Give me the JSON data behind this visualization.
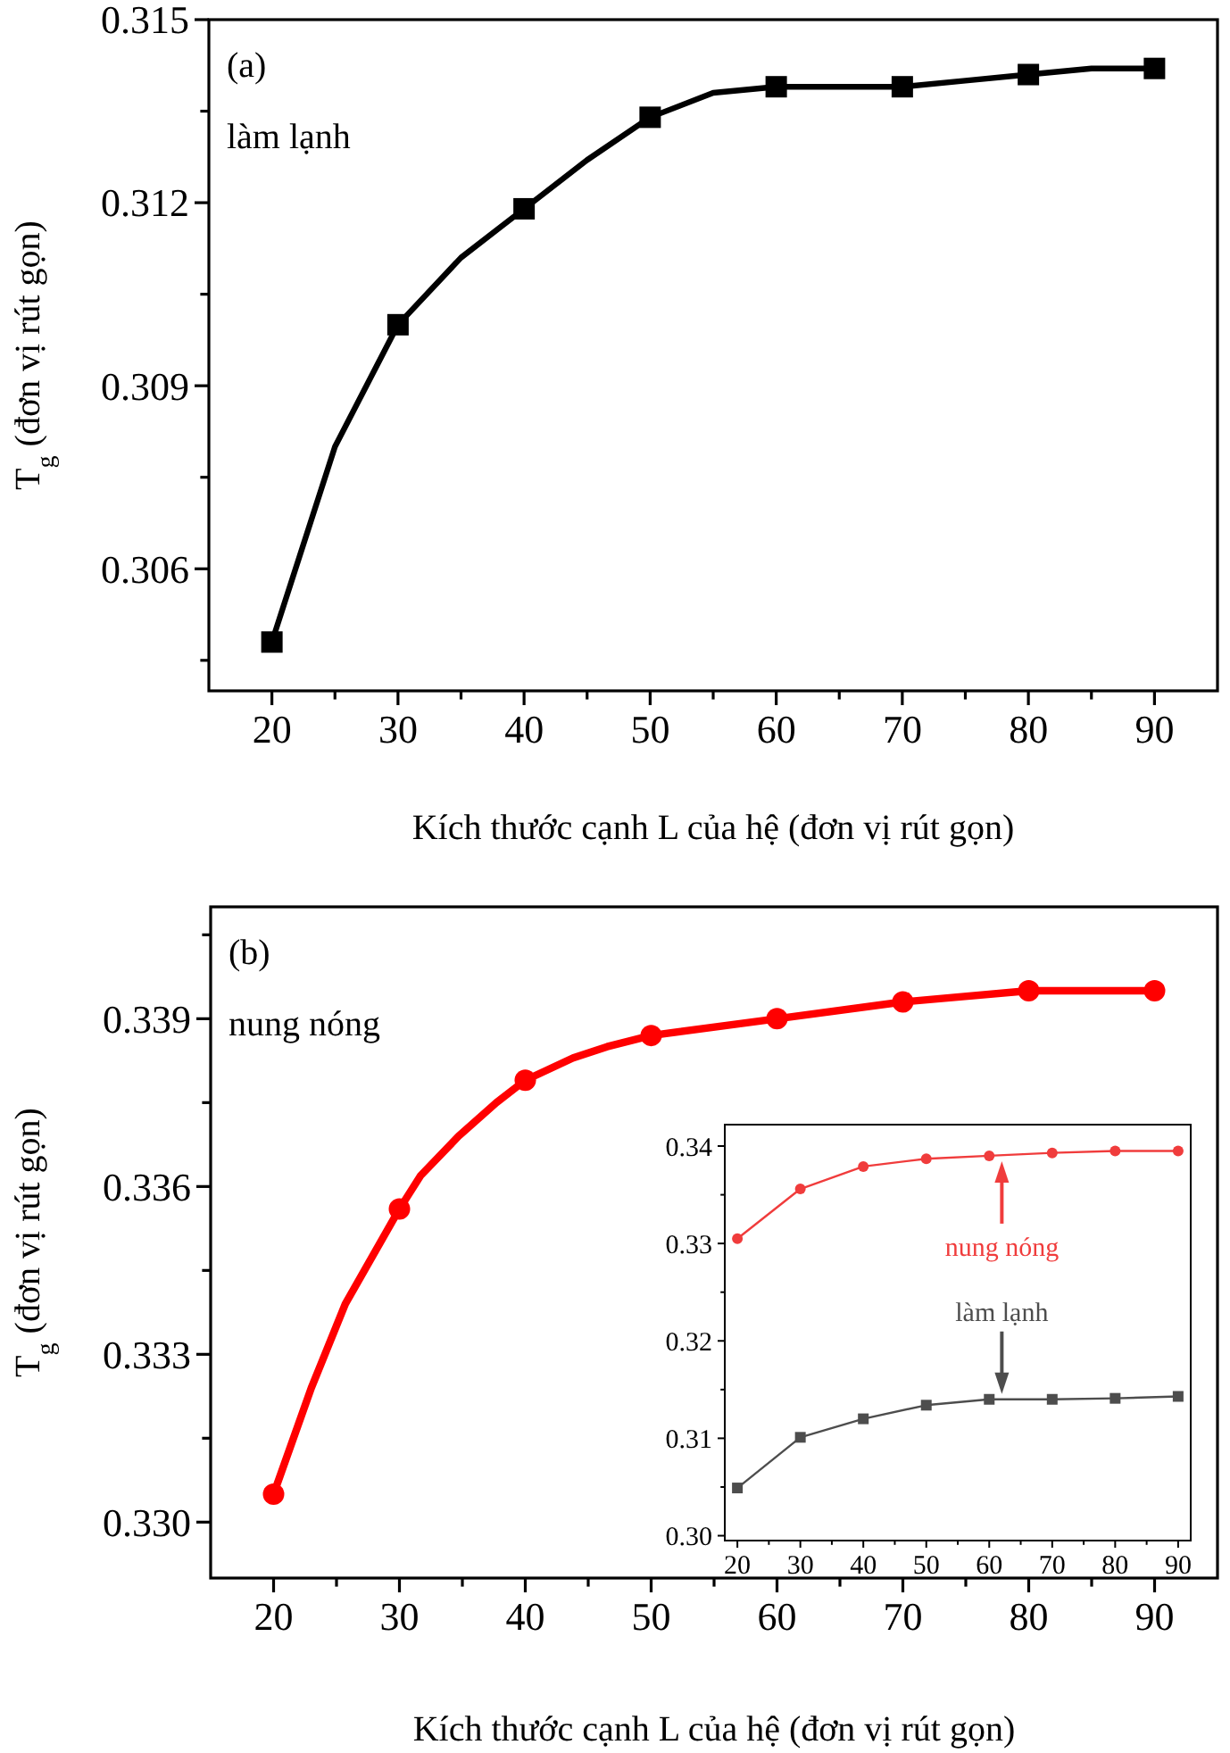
{
  "chart_data": [
    {
      "type": "line",
      "xlabel": "Kích thước cạnh L của hệ (đơn vị rút gọn)",
      "ylabel": "T$_{g}$ (đơn vị rút gọn)",
      "annotations": [
        "(a)",
        "làm lạnh"
      ],
      "xlim": [
        15,
        95
      ],
      "ylim": [
        0.304,
        0.315
      ],
      "xticks": [
        20,
        {
          "value": 25,
          "label": null
        },
        30,
        {
          "value": 35,
          "label": null
        },
        40,
        {
          "value": 45,
          "label": null
        },
        50,
        {
          "value": 55,
          "label": null
        },
        60,
        {
          "value": 65,
          "label": null
        },
        70,
        {
          "value": 75,
          "label": null
        },
        80,
        {
          "value": 85,
          "label": null
        },
        90
      ],
      "yticks": [
        {
          "value": 0.3045,
          "label": null
        },
        0.306,
        {
          "value": 0.3075,
          "label": null
        },
        0.309,
        {
          "value": 0.3105,
          "label": null
        },
        0.312,
        {
          "value": 0.3135,
          "label": null
        },
        0.315
      ],
      "grid": false,
      "line_style": "solid",
      "series": [
        {
          "color": "#000000",
          "marker": "none",
          "x": [
            20,
            25,
            30,
            35,
            40,
            45,
            50,
            55,
            60,
            70,
            75,
            80,
            85,
            90
          ],
          "values": [
            0.3048,
            0.308,
            0.31,
            0.3111,
            0.3119,
            0.3127,
            0.3134,
            0.3138,
            0.3139,
            0.3139,
            0.314,
            0.3141,
            0.3142,
            0.3142
          ]
        },
        {
          "type": "scatter",
          "color": "#000000",
          "marker": "square",
          "x": [
            20,
            30,
            40,
            50,
            60,
            70,
            80,
            90
          ],
          "values": [
            0.3048,
            0.31,
            0.3119,
            0.3134,
            0.3139,
            0.3139,
            0.3141,
            0.3142
          ]
        }
      ]
    },
    {
      "type": "line",
      "xlabel": "Kích thước cạnh L của hệ (đơn vị rút gọn)",
      "ylabel": "T$_{g}$ (đơn vị rút gọn)",
      "annotations": [
        "(b)",
        "nung nóng"
      ],
      "xlim": [
        15,
        95
      ],
      "ylim": [
        0.329,
        0.341
      ],
      "xticks": [
        20,
        {
          "value": 25,
          "label": null
        },
        30,
        {
          "value": 35,
          "label": null
        },
        40,
        {
          "value": 45,
          "label": null
        },
        50,
        {
          "value": 55,
          "label": null
        },
        60,
        {
          "value": 65,
          "label": null
        },
        70,
        {
          "value": 75,
          "label": null
        },
        80,
        {
          "value": 85,
          "label": null
        },
        90
      ],
      "yticks": [
        {
          "value": 0.33,
          "label": "0.330"
        },
        {
          "value": 0.3315,
          "label": null
        },
        0.333,
        {
          "value": 0.3345,
          "label": null
        },
        0.336,
        {
          "value": 0.3375,
          "label": null
        },
        0.339,
        {
          "value": 0.3405,
          "label": null
        }
      ],
      "grid": false,
      "line_style": "solid",
      "series": [
        {
          "color": "#ff0000",
          "marker": "none",
          "x": [
            20,
            23,
            25.7,
            30,
            31.7,
            34.7,
            37.7,
            40,
            43.8,
            46.5,
            50,
            60,
            70,
            80,
            90
          ],
          "values": [
            0.3305,
            0.3324,
            0.3339,
            0.3356,
            0.3362,
            0.3369,
            0.3375,
            0.3379,
            0.3383,
            0.3385,
            0.3387,
            0.339,
            0.3393,
            0.3395,
            0.3395
          ]
        },
        {
          "type": "scatter",
          "color": "#ff0000",
          "marker": "circle",
          "x": [
            20,
            30,
            40,
            50,
            60,
            70,
            80,
            90
          ],
          "values": [
            0.3305,
            0.3356,
            0.3379,
            0.3387,
            0.339,
            0.3393,
            0.3395,
            0.3395
          ]
        }
      ]
    },
    {
      "type": "line",
      "xlim": [
        18,
        92
      ],
      "ylim": [
        0.2995,
        0.3422
      ],
      "xticks": [
        20,
        {
          "value": 25,
          "label": null
        },
        30,
        {
          "value": 35,
          "label": null
        },
        40,
        {
          "value": 45,
          "label": null
        },
        50,
        {
          "value": 55,
          "label": null
        },
        60,
        {
          "value": 65,
          "label": null
        },
        70,
        {
          "value": 75,
          "label": null
        },
        80,
        {
          "value": 85,
          "label": null
        },
        90
      ],
      "yticks": [
        {
          "value": 0.3,
          "label": "0.30"
        },
        {
          "value": 0.305,
          "label": null
        },
        0.31,
        {
          "value": 0.315,
          "label": null
        },
        0.32,
        {
          "value": 0.325,
          "label": null
        },
        0.33,
        {
          "value": 0.335,
          "label": null
        },
        0.34
      ],
      "annotations": [
        {
          "text": "nung nóng",
          "x": 62,
          "y": 0.339
        },
        {
          "text": "làm lạnh",
          "x": 62,
          "y": 0.314
        }
      ],
      "grid": false,
      "line_style": "solid",
      "series": [
        {
          "color": "#f03c3c",
          "marker": "circle",
          "x": [
            20,
            30,
            40,
            50,
            60,
            70,
            80,
            90
          ],
          "values": [
            0.3305,
            0.3356,
            0.3379,
            0.3387,
            0.339,
            0.3393,
            0.3395,
            0.3395
          ]
        },
        {
          "color": "#4d4d4d",
          "marker": "square",
          "x": [
            20,
            30,
            40,
            50,
            60,
            70,
            80,
            90
          ],
          "values": [
            0.3049,
            0.3101,
            0.312,
            0.3134,
            0.314,
            0.314,
            0.3141,
            0.3143
          ]
        }
      ]
    }
  ]
}
